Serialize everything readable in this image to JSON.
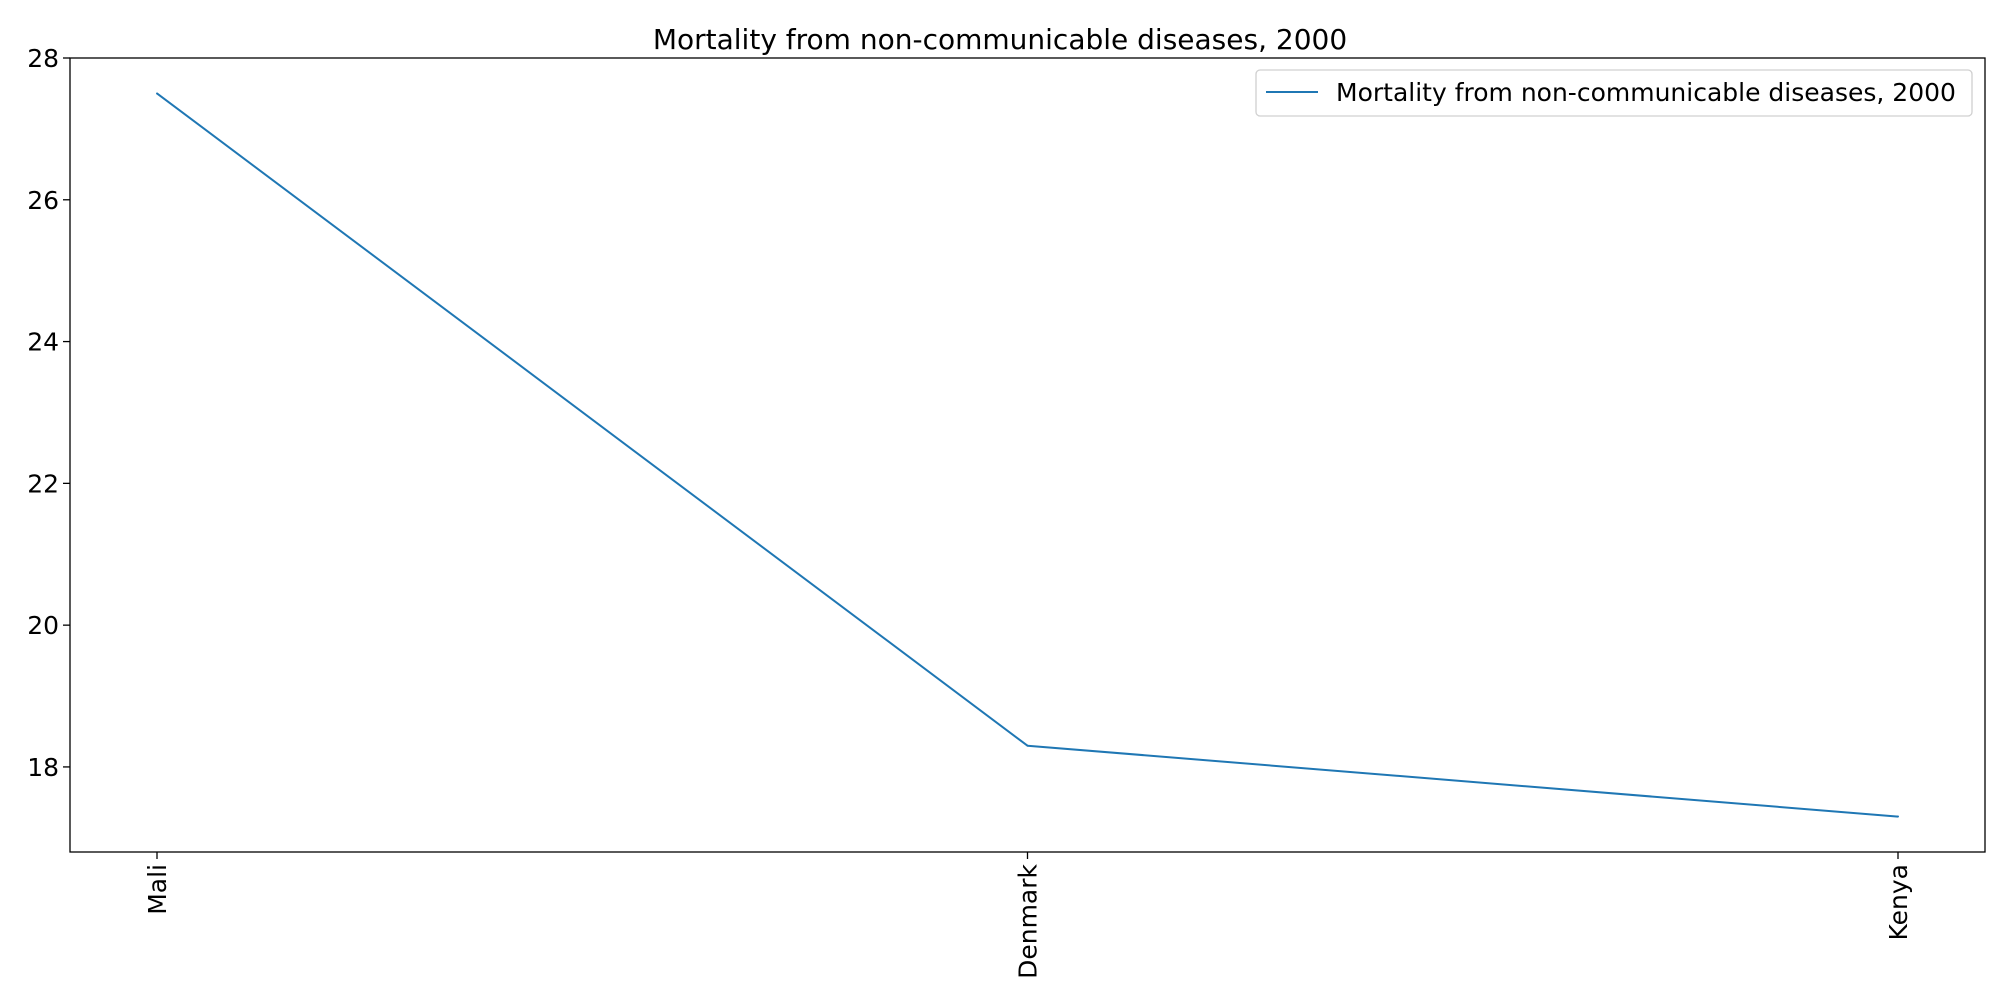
{
  "chart_data": {
    "type": "line",
    "title": "Mortality from non-communicable diseases, 2000",
    "xlabel": "",
    "ylabel": "",
    "categories": [
      "Mali",
      "Denmark",
      "Kenya"
    ],
    "series": [
      {
        "name": "Mortality from non-communicable diseases, 2000",
        "values": [
          27.5,
          18.3,
          17.3
        ],
        "color": "#1f77b4"
      }
    ],
    "ylim": [
      16.8,
      28
    ],
    "yticks": [
      18,
      20,
      22,
      24,
      26,
      28
    ],
    "grid": false,
    "legend_position": "top-right"
  }
}
